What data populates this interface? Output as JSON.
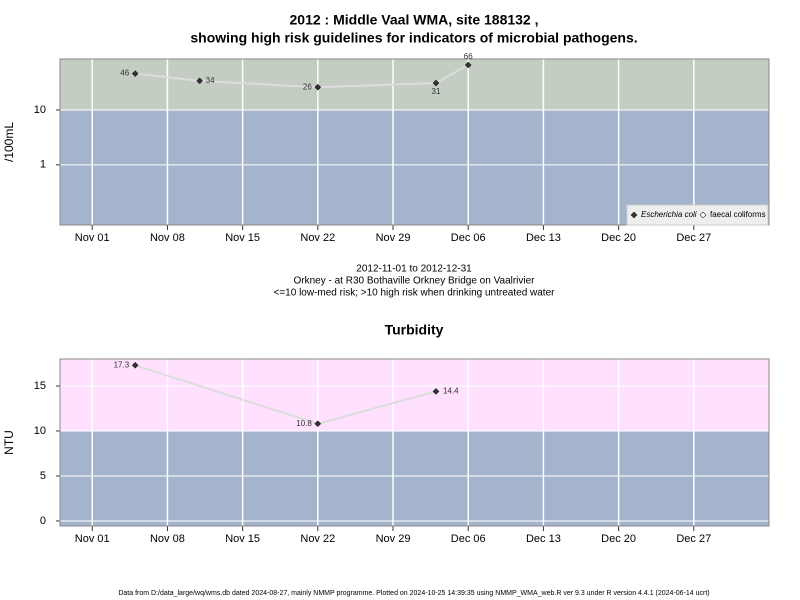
{
  "chart_data": [
    {
      "type": "line",
      "title": "2012 : Middle Vaal WMA, site 188132 ,",
      "subtitle": "showing high risk guidelines for indicators of microbial pathogens.",
      "ylabel": "/100mL",
      "log_y": true,
      "grid": true,
      "legend": "bottom-right",
      "threshold": 10,
      "band_colors": {
        "above": "#c3cdc2",
        "below": "#a3b4cc"
      },
      "x": [
        "2012-11-05",
        "2012-11-11",
        "2012-11-22",
        "2012-12-03",
        "2012-12-06"
      ],
      "series": [
        {
          "name": "Escherichia coli",
          "color": "#333333",
          "values": [
            46,
            34,
            26,
            31,
            66
          ]
        },
        {
          "name": "faecal coliforms",
          "color": "#ffffff",
          "values": [
            null,
            null,
            null,
            null,
            null
          ]
        }
      ],
      "xlim": [
        "2012-10-29",
        "2013-01-03"
      ],
      "ylim": [
        0.08,
        85
      ],
      "yticks": [
        1,
        10
      ],
      "xticks": [
        {
          "value": "2012-11-01",
          "label": "Nov 01"
        },
        {
          "value": "2012-11-08",
          "label": "Nov 08"
        },
        {
          "value": "2012-11-15",
          "label": "Nov 15"
        },
        {
          "value": "2012-11-22",
          "label": "Nov 22"
        },
        {
          "value": "2012-11-29",
          "label": "Nov 29"
        },
        {
          "value": "2012-12-06",
          "label": "Dec 06"
        },
        {
          "value": "2012-12-13",
          "label": "Dec 13"
        },
        {
          "value": "2012-12-20",
          "label": "Dec 20"
        },
        {
          "value": "2012-12-27",
          "label": "Dec 27"
        }
      ],
      "notes": [
        "2012-11-01 to 2012-12-31",
        "Orkney - at R30 Bothaville Orkney Bridge on Vaalrivier",
        "<=10 low-med risk; >10 high risk when drinking untreated water"
      ]
    },
    {
      "type": "line",
      "title": "Turbidity",
      "ylabel": "NTU",
      "log_y": false,
      "grid": true,
      "threshold": 10,
      "band_colors": {
        "above": "#ffe0ff",
        "below": "#a3b4cc"
      },
      "x": [
        "2012-11-05",
        "2012-11-22",
        "2012-12-03"
      ],
      "series": [
        {
          "color": "#333333",
          "values": [
            17.3,
            10.8,
            14.4
          ]
        }
      ],
      "xlim": [
        "2012-10-29",
        "2013-01-03"
      ],
      "ylim": [
        -0.56,
        18
      ],
      "yticks": [
        0,
        5,
        10,
        15
      ],
      "xticks": [
        {
          "value": "2012-11-01",
          "label": "Nov 01"
        },
        {
          "value": "2012-11-08",
          "label": "Nov 08"
        },
        {
          "value": "2012-11-15",
          "label": "Nov 15"
        },
        {
          "value": "2012-11-22",
          "label": "Nov 22"
        },
        {
          "value": "2012-11-29",
          "label": "Nov 29"
        },
        {
          "value": "2012-12-06",
          "label": "Dec 06"
        },
        {
          "value": "2012-12-13",
          "label": "Dec 13"
        },
        {
          "value": "2012-12-20",
          "label": "Dec 20"
        },
        {
          "value": "2012-12-27",
          "label": "Dec 27"
        }
      ]
    }
  ],
  "footer": "Data from D:/data_large/wq/wms.db dated 2024-08-27, mainly NMMP programme. Plotted on 2024-10-25 14:39:35 using NMMP_WMA_web.R ver 9.3 under R version 4.4.1 (2024-06-14 ucrt)"
}
